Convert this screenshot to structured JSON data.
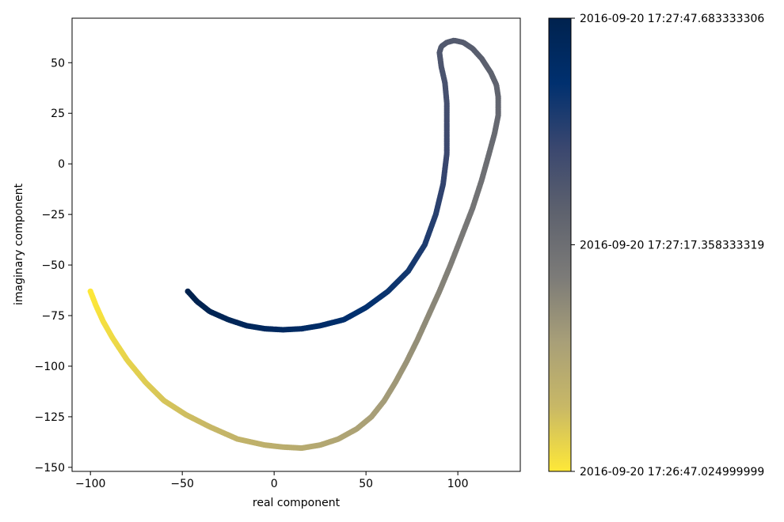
{
  "chart_data": {
    "type": "scatter",
    "title": "",
    "xlabel": "real component",
    "ylabel": "imaginary component",
    "xlim": [
      -110,
      134
    ],
    "ylim": [
      -152,
      72
    ],
    "xticks": [
      -100,
      -50,
      0,
      50,
      100
    ],
    "yticks": [
      -150,
      -125,
      -100,
      -75,
      -50,
      -25,
      0,
      25,
      50
    ],
    "xtick_labels": [
      "−100",
      "−50",
      "0",
      "50",
      "100"
    ],
    "ytick_labels": [
      "−150",
      "−125",
      "−100",
      "−75",
      "−50",
      "−25",
      "0",
      "25",
      "50"
    ],
    "grid": false,
    "colormap": "cividis",
    "colormap_stops": [
      "#fee838",
      "#c8b866",
      "#a89f78",
      "#7c7b78",
      "#5e626e",
      "#3a476f",
      "#00306f",
      "#00224e"
    ],
    "colorbar": {
      "ticks": [
        0,
        0.5,
        1
      ],
      "tick_labels": [
        "2016-09-20 17:26:47.024999999",
        "2016-09-20 17:27:17.358333319",
        "2016-09-20 17:27:47.683333306"
      ]
    },
    "path": [
      [
        -100,
        -63
      ],
      [
        -97,
        -70
      ],
      [
        -93,
        -78
      ],
      [
        -88,
        -86
      ],
      [
        -80,
        -97
      ],
      [
        -70,
        -108
      ],
      [
        -60,
        -117
      ],
      [
        -48,
        -124
      ],
      [
        -35,
        -130
      ],
      [
        -20,
        -136
      ],
      [
        -5,
        -139
      ],
      [
        5,
        -140
      ],
      [
        15,
        -140.5
      ],
      [
        25,
        -139
      ],
      [
        35,
        -136
      ],
      [
        45,
        -131
      ],
      [
        53,
        -125
      ],
      [
        60,
        -117
      ],
      [
        66,
        -108
      ],
      [
        72,
        -98
      ],
      [
        78,
        -87
      ],
      [
        84,
        -75
      ],
      [
        90,
        -63
      ],
      [
        96,
        -50
      ],
      [
        102,
        -36
      ],
      [
        108,
        -22
      ],
      [
        113,
        -8
      ],
      [
        117,
        5
      ],
      [
        120,
        15
      ],
      [
        122,
        24
      ],
      [
        122,
        33
      ],
      [
        121,
        39
      ],
      [
        118,
        45
      ],
      [
        113,
        52
      ],
      [
        108,
        57
      ],
      [
        103,
        60
      ],
      [
        98,
        61
      ],
      [
        94,
        60
      ],
      [
        91,
        58
      ],
      [
        90,
        55
      ],
      [
        91,
        48
      ],
      [
        93,
        40
      ],
      [
        94,
        30
      ],
      [
        94,
        18
      ],
      [
        94,
        5
      ],
      [
        92,
        -10
      ],
      [
        88,
        -25
      ],
      [
        82,
        -40
      ],
      [
        73,
        -53
      ],
      [
        62,
        -63
      ],
      [
        50,
        -71
      ],
      [
        38,
        -77
      ],
      [
        25,
        -80
      ],
      [
        15,
        -81.5
      ],
      [
        5,
        -82
      ],
      [
        -5,
        -81.5
      ],
      [
        -15,
        -80
      ],
      [
        -25,
        -77
      ],
      [
        -35,
        -73
      ],
      [
        -42,
        -68
      ],
      [
        -47,
        -63
      ]
    ]
  }
}
